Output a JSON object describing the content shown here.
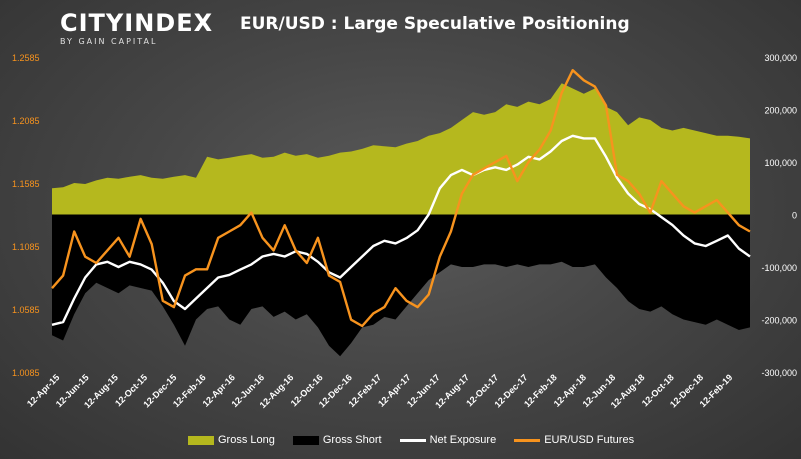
{
  "logo": {
    "main": "CITYINDEX",
    "sub": "BY GAIN CAPITAL"
  },
  "colors": {
    "gross_long": "#b5b81e",
    "gross_short": "#000000",
    "net": "#ffffff",
    "futures": "#f7931e",
    "left_axis_text": "#f7931e",
    "right_axis_text": "#ffffff"
  },
  "chart_data": {
    "type": "area",
    "title": "EUR/USD : Large Speculative Positioning",
    "x_ticks": [
      "12-Apr-15",
      "12-Jun-15",
      "12-Aug-15",
      "12-Oct-15",
      "12-Dec-15",
      "12-Feb-16",
      "12-Apr-16",
      "12-Jun-16",
      "12-Aug-16",
      "12-Oct-16",
      "12-Dec-16",
      "12-Feb-17",
      "12-Apr-17",
      "12-Jun-17",
      "12-Aug-17",
      "12-Oct-17",
      "12-Dec-17",
      "12-Feb-18",
      "12-Apr-18",
      "12-Jun-18",
      "12-Aug-18",
      "12-Oct-18",
      "12-Dec-18",
      "12-Feb-19"
    ],
    "left_axis": {
      "ticks": [
        "1.2585",
        "1.2085",
        "1.1585",
        "1.1085",
        "1.0585",
        "1.0085"
      ],
      "range": [
        1.0085,
        1.2585
      ]
    },
    "right_axis": {
      "ticks": [
        "300,000",
        "200,000",
        "100,000",
        "0",
        "-100,000",
        "-200,000",
        "-300,000"
      ],
      "range": [
        -300000,
        300000
      ]
    },
    "legend": [
      "Gross Long",
      "Gross Short",
      "Net Exposure",
      "EUR/USD Futures"
    ],
    "legend_position": "bottom",
    "series": [
      {
        "name": "Gross Long",
        "axis": "right",
        "kind": "area",
        "values": [
          50000,
          52000,
          60000,
          58000,
          65000,
          70000,
          68000,
          72000,
          75000,
          70000,
          68000,
          72000,
          75000,
          70000,
          110000,
          105000,
          108000,
          112000,
          115000,
          108000,
          110000,
          118000,
          112000,
          115000,
          108000,
          112000,
          118000,
          120000,
          125000,
          132000,
          130000,
          128000,
          135000,
          140000,
          150000,
          155000,
          165000,
          180000,
          195000,
          190000,
          195000,
          210000,
          205000,
          215000,
          210000,
          220000,
          250000,
          240000,
          230000,
          240000,
          205000,
          195000,
          170000,
          185000,
          180000,
          165000,
          160000,
          165000,
          160000,
          155000,
          150000,
          150000,
          148000,
          145000
        ]
      },
      {
        "name": "Gross Short",
        "axis": "right",
        "kind": "area",
        "values": [
          -230000,
          -240000,
          -190000,
          -150000,
          -130000,
          -140000,
          -150000,
          -135000,
          -140000,
          -145000,
          -175000,
          -210000,
          -250000,
          -200000,
          -180000,
          -175000,
          -200000,
          -210000,
          -180000,
          -175000,
          -195000,
          -185000,
          -200000,
          -190000,
          -215000,
          -250000,
          -270000,
          -245000,
          -215000,
          -210000,
          -195000,
          -200000,
          -175000,
          -150000,
          -125000,
          -110000,
          -95000,
          -100000,
          -100000,
          -95000,
          -95000,
          -100000,
          -95000,
          -100000,
          -95000,
          -95000,
          -90000,
          -100000,
          -100000,
          -95000,
          -120000,
          -140000,
          -165000,
          -180000,
          -185000,
          -175000,
          -190000,
          -200000,
          -205000,
          -210000,
          -200000,
          -210000,
          -220000,
          -215000
        ]
      },
      {
        "name": "Net Exposure",
        "axis": "right",
        "kind": "line",
        "values": [
          -210000,
          -205000,
          -160000,
          -120000,
          -95000,
          -90000,
          -100000,
          -90000,
          -95000,
          -105000,
          -130000,
          -165000,
          -180000,
          -160000,
          -140000,
          -120000,
          -115000,
          -105000,
          -95000,
          -80000,
          -75000,
          -80000,
          -70000,
          -75000,
          -90000,
          -110000,
          -120000,
          -100000,
          -80000,
          -60000,
          -50000,
          -55000,
          -45000,
          -30000,
          0,
          50000,
          75000,
          85000,
          75000,
          85000,
          90000,
          85000,
          95000,
          110000,
          105000,
          120000,
          140000,
          150000,
          145000,
          145000,
          110000,
          70000,
          40000,
          20000,
          10000,
          -5000,
          -20000,
          -40000,
          -55000,
          -60000,
          -50000,
          -40000,
          -65000,
          -80000
        ]
      },
      {
        "name": "EUR/USD Futures",
        "axis": "left",
        "kind": "line",
        "values": [
          1.075,
          1.085,
          1.12,
          1.1,
          1.095,
          1.105,
          1.115,
          1.1,
          1.13,
          1.11,
          1.065,
          1.06,
          1.085,
          1.09,
          1.09,
          1.115,
          1.12,
          1.125,
          1.135,
          1.115,
          1.105,
          1.125,
          1.105,
          1.095,
          1.115,
          1.085,
          1.08,
          1.05,
          1.045,
          1.055,
          1.06,
          1.075,
          1.065,
          1.06,
          1.07,
          1.1,
          1.12,
          1.15,
          1.165,
          1.17,
          1.175,
          1.18,
          1.16,
          1.175,
          1.185,
          1.2,
          1.23,
          1.248,
          1.24,
          1.235,
          1.22,
          1.165,
          1.16,
          1.15,
          1.135,
          1.16,
          1.15,
          1.14,
          1.135,
          1.14,
          1.145,
          1.135,
          1.125,
          1.12
        ]
      }
    ]
  }
}
